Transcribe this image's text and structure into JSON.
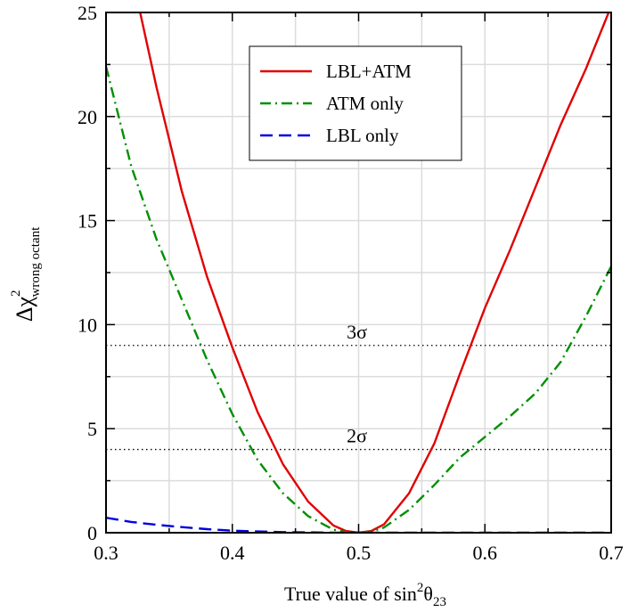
{
  "chart_data": {
    "type": "line",
    "xlabel": {
      "prefix": "True value of sin",
      "sup": "2",
      "main": "θ",
      "sub": "23"
    },
    "ylabel": {
      "main": "Δχ",
      "sup": "2",
      "sub": "wrong octant"
    },
    "xlim": [
      0.3,
      0.7
    ],
    "ylim": [
      0,
      25
    ],
    "xticks": [
      0.3,
      0.4,
      0.5,
      0.6,
      0.7
    ],
    "xtick_labels": [
      "0.3",
      "0.4",
      "0.5",
      "0.6",
      "0.7"
    ],
    "yticks": [
      0,
      5,
      10,
      15,
      20,
      25
    ],
    "ytick_labels": [
      "0",
      "5",
      "10",
      "15",
      "20",
      "25"
    ],
    "grid": true,
    "legend_position": "top-right",
    "series": [
      {
        "name": "LBL+ATM",
        "color": "#e00000",
        "style": "solid",
        "x": [
          0.327,
          0.34,
          0.36,
          0.38,
          0.4,
          0.42,
          0.44,
          0.46,
          0.48,
          0.49,
          0.5,
          0.51,
          0.52,
          0.54,
          0.56,
          0.58,
          0.6,
          0.62,
          0.64,
          0.66,
          0.68,
          0.7
        ],
        "y": [
          25.0,
          21.4,
          16.4,
          12.3,
          8.9,
          5.8,
          3.3,
          1.5,
          0.35,
          0.08,
          0.0,
          0.08,
          0.4,
          1.9,
          4.3,
          7.6,
          10.8,
          13.6,
          16.6,
          19.6,
          22.3,
          25.3
        ]
      },
      {
        "name": "ATM only",
        "color": "#009000",
        "style": "dashdot",
        "x": [
          0.3,
          0.32,
          0.34,
          0.36,
          0.38,
          0.4,
          0.42,
          0.44,
          0.46,
          0.48,
          0.49,
          0.5,
          0.51,
          0.52,
          0.54,
          0.56,
          0.58,
          0.6,
          0.62,
          0.64,
          0.66,
          0.68,
          0.7
        ],
        "y": [
          22.4,
          17.6,
          14.1,
          11.2,
          8.3,
          5.7,
          3.5,
          1.9,
          0.8,
          0.15,
          0.03,
          0.0,
          0.05,
          0.25,
          1.1,
          2.3,
          3.6,
          4.6,
          5.6,
          6.7,
          8.2,
          10.4,
          12.8
        ]
      },
      {
        "name": "LBL only",
        "color": "#0000e0",
        "style": "dashed",
        "x": [
          0.3,
          0.32,
          0.34,
          0.36,
          0.38,
          0.4,
          0.42,
          0.44,
          0.46,
          0.48,
          0.5,
          0.55,
          0.6,
          0.65,
          0.7
        ],
        "y": [
          0.72,
          0.52,
          0.38,
          0.27,
          0.17,
          0.1,
          0.06,
          0.03,
          0.015,
          0.005,
          0.0,
          0.0,
          0.0,
          0.0,
          0.0
        ]
      }
    ],
    "reference_lines": [
      {
        "y": 9,
        "label": "3σ",
        "x_label": 0.5
      },
      {
        "y": 4,
        "label": "2σ",
        "x_label": 0.5
      }
    ]
  }
}
